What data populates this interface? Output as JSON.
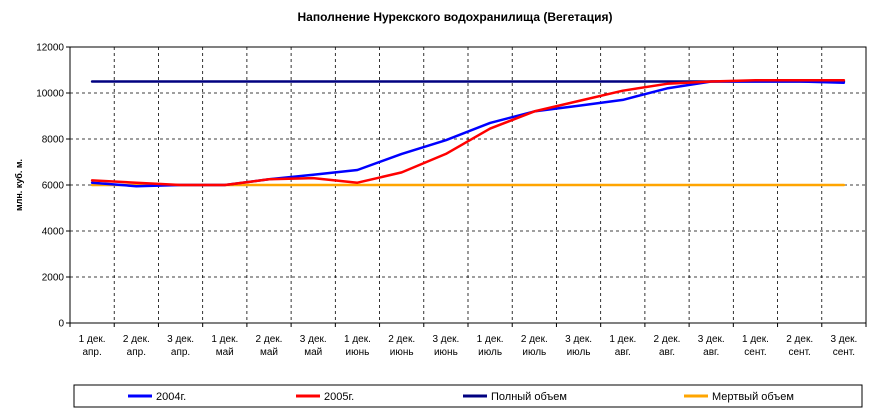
{
  "chart_data": {
    "type": "line",
    "title": "Наполнение Нурекского водохранилища (Вегетация)",
    "ylabel": "млн. куб. м.",
    "xlabel": "",
    "ylim": [
      0,
      12000
    ],
    "yticks": [
      0,
      2000,
      4000,
      6000,
      8000,
      10000,
      12000
    ],
    "grid": true,
    "legend": "bottom",
    "categories": [
      [
        "1 дек.",
        "апр."
      ],
      [
        "2 дек.",
        "апр."
      ],
      [
        "3 дек.",
        "апр."
      ],
      [
        "1 дек.",
        "май"
      ],
      [
        "2 дек.",
        "май"
      ],
      [
        "3 дек.",
        "май"
      ],
      [
        "1 дек.",
        "июнь"
      ],
      [
        "2 дек.",
        "июнь"
      ],
      [
        "3 дек.",
        "июнь"
      ],
      [
        "1 дек.",
        "июль"
      ],
      [
        "2 дек.",
        "июль"
      ],
      [
        "3 дек.",
        "июль"
      ],
      [
        "1 дек.",
        "авг."
      ],
      [
        "2 дек.",
        "авг."
      ],
      [
        "3 дек.",
        "авг."
      ],
      [
        "1 дек.",
        "сент."
      ],
      [
        "2 дек.",
        "сент."
      ],
      [
        "3 дек.",
        "сент."
      ]
    ],
    "series": [
      {
        "name": "2004г.",
        "color": "#0000ff",
        "values": [
          6100,
          5950,
          6000,
          6000,
          6250,
          6450,
          6650,
          7350,
          7950,
          8700,
          9200,
          9450,
          9700,
          10200,
          10500,
          10500,
          10500,
          10450
        ]
      },
      {
        "name": "2005г.",
        "color": "#ff0000",
        "values": [
          6200,
          6100,
          6000,
          6000,
          6250,
          6300,
          6100,
          6550,
          7350,
          8450,
          9200,
          9650,
          10100,
          10400,
          10500,
          10550,
          10550,
          10550
        ]
      },
      {
        "name": "Полный объем",
        "color": "#000080",
        "values": [
          10500,
          10500,
          10500,
          10500,
          10500,
          10500,
          10500,
          10500,
          10500,
          10500,
          10500,
          10500,
          10500,
          10500,
          10500,
          10500,
          10500,
          10500
        ]
      },
      {
        "name": "Мертвый объем",
        "color": "#ffa500",
        "values": [
          6000,
          6000,
          6000,
          6000,
          6000,
          6000,
          6000,
          6000,
          6000,
          6000,
          6000,
          6000,
          6000,
          6000,
          6000,
          6000,
          6000,
          6000
        ]
      }
    ]
  }
}
